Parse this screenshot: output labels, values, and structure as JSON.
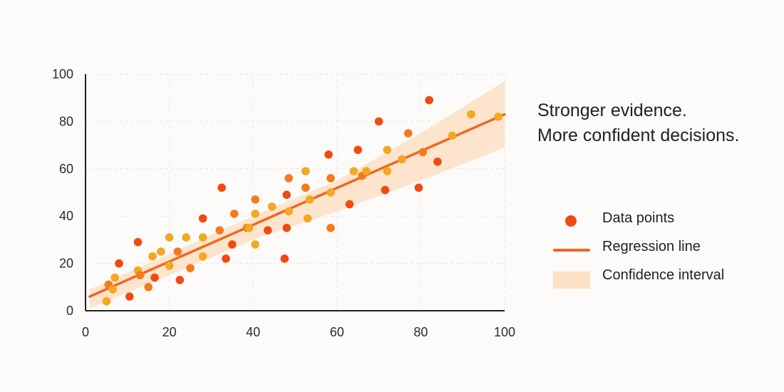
{
  "headline": {
    "line1": "Stronger evidence.",
    "line2": "More confident decisions."
  },
  "legend": {
    "data_points": "Data points",
    "regression_line": "Regression line",
    "confidence_interval": "Confidence interval"
  },
  "colors": {
    "point_dark": "#f04a12",
    "point_mid": "#f37a1f",
    "point_light": "#f5a623",
    "regression_line": "#f26522",
    "confidence_band": "#fbe0c4",
    "axis": "#222222",
    "grid": "#ebe6e1"
  },
  "chart_data": {
    "type": "scatter",
    "title": "",
    "xlabel": "",
    "ylabel": "",
    "xlim": [
      0,
      100
    ],
    "ylim": [
      0,
      100
    ],
    "x_ticks": [
      "0",
      "20",
      "40",
      "60",
      "80",
      "100"
    ],
    "y_ticks": [
      "0",
      "20",
      "40",
      "60",
      "80",
      "100"
    ],
    "grid": true,
    "legend_position": "right",
    "series": [
      {
        "name": "Data points",
        "points": [
          {
            "x": 5,
            "y": 4,
            "tone": "light"
          },
          {
            "x": 5.5,
            "y": 11,
            "tone": "mid"
          },
          {
            "x": 6.5,
            "y": 9,
            "tone": "light"
          },
          {
            "x": 7,
            "y": 14,
            "tone": "light"
          },
          {
            "x": 8,
            "y": 20,
            "tone": "dark"
          },
          {
            "x": 10.5,
            "y": 6,
            "tone": "dark"
          },
          {
            "x": 12.5,
            "y": 17,
            "tone": "light"
          },
          {
            "x": 12.5,
            "y": 29,
            "tone": "dark"
          },
          {
            "x": 13,
            "y": 15,
            "tone": "mid"
          },
          {
            "x": 15,
            "y": 10,
            "tone": "mid"
          },
          {
            "x": 16,
            "y": 23,
            "tone": "light"
          },
          {
            "x": 16.5,
            "y": 14,
            "tone": "dark"
          },
          {
            "x": 18,
            "y": 25,
            "tone": "light"
          },
          {
            "x": 20,
            "y": 19,
            "tone": "light"
          },
          {
            "x": 20,
            "y": 31,
            "tone": "light"
          },
          {
            "x": 22,
            "y": 25,
            "tone": "mid"
          },
          {
            "x": 22.5,
            "y": 13,
            "tone": "dark"
          },
          {
            "x": 24,
            "y": 31,
            "tone": "light"
          },
          {
            "x": 25,
            "y": 18,
            "tone": "mid"
          },
          {
            "x": 28,
            "y": 23,
            "tone": "light"
          },
          {
            "x": 28,
            "y": 31,
            "tone": "light"
          },
          {
            "x": 28,
            "y": 39,
            "tone": "dark"
          },
          {
            "x": 32,
            "y": 34,
            "tone": "mid"
          },
          {
            "x": 32.5,
            "y": 52,
            "tone": "dark"
          },
          {
            "x": 33.5,
            "y": 22,
            "tone": "dark"
          },
          {
            "x": 35,
            "y": 28,
            "tone": "dark"
          },
          {
            "x": 35.5,
            "y": 41,
            "tone": "mid"
          },
          {
            "x": 38.5,
            "y": 35,
            "tone": "mid"
          },
          {
            "x": 39,
            "y": 35,
            "tone": "light"
          },
          {
            "x": 40.5,
            "y": 41,
            "tone": "light"
          },
          {
            "x": 40.5,
            "y": 47,
            "tone": "mid"
          },
          {
            "x": 40.5,
            "y": 28,
            "tone": "light"
          },
          {
            "x": 43.5,
            "y": 34,
            "tone": "dark"
          },
          {
            "x": 44.5,
            "y": 44,
            "tone": "light"
          },
          {
            "x": 47.5,
            "y": 22,
            "tone": "dark"
          },
          {
            "x": 48,
            "y": 49,
            "tone": "dark"
          },
          {
            "x": 48,
            "y": 35,
            "tone": "dark"
          },
          {
            "x": 48.5,
            "y": 42,
            "tone": "light"
          },
          {
            "x": 48.5,
            "y": 56,
            "tone": "mid"
          },
          {
            "x": 52.5,
            "y": 52,
            "tone": "mid"
          },
          {
            "x": 52.5,
            "y": 59,
            "tone": "light"
          },
          {
            "x": 53,
            "y": 39,
            "tone": "light"
          },
          {
            "x": 53.5,
            "y": 47,
            "tone": "light"
          },
          {
            "x": 58,
            "y": 66,
            "tone": "dark"
          },
          {
            "x": 58.5,
            "y": 56,
            "tone": "mid"
          },
          {
            "x": 58.5,
            "y": 35,
            "tone": "mid"
          },
          {
            "x": 58.5,
            "y": 50,
            "tone": "light"
          },
          {
            "x": 63,
            "y": 45,
            "tone": "dark"
          },
          {
            "x": 64,
            "y": 59,
            "tone": "light"
          },
          {
            "x": 65,
            "y": 68,
            "tone": "dark"
          },
          {
            "x": 66,
            "y": 57,
            "tone": "mid"
          },
          {
            "x": 67,
            "y": 59,
            "tone": "light"
          },
          {
            "x": 70,
            "y": 80,
            "tone": "dark"
          },
          {
            "x": 71.5,
            "y": 51,
            "tone": "dark"
          },
          {
            "x": 72,
            "y": 68,
            "tone": "light"
          },
          {
            "x": 72,
            "y": 59,
            "tone": "light"
          },
          {
            "x": 75.5,
            "y": 64,
            "tone": "light"
          },
          {
            "x": 77,
            "y": 75,
            "tone": "mid"
          },
          {
            "x": 79.5,
            "y": 52,
            "tone": "dark"
          },
          {
            "x": 80.5,
            "y": 67,
            "tone": "mid"
          },
          {
            "x": 82,
            "y": 89,
            "tone": "dark"
          },
          {
            "x": 84,
            "y": 63,
            "tone": "dark"
          },
          {
            "x": 87.5,
            "y": 74,
            "tone": "light"
          },
          {
            "x": 92,
            "y": 83,
            "tone": "light"
          },
          {
            "x": 98.5,
            "y": 82,
            "tone": "light"
          }
        ]
      },
      {
        "name": "Regression line",
        "x": [
          1,
          100
        ],
        "y": [
          6,
          83
        ]
      },
      {
        "name": "Confidence interval",
        "x": [
          1,
          20,
          40,
          60,
          80,
          100
        ],
        "lower": [
          1,
          15,
          30,
          42,
          55,
          69
        ],
        "upper": [
          9,
          24,
          40,
          55,
          75,
          97
        ]
      }
    ]
  }
}
